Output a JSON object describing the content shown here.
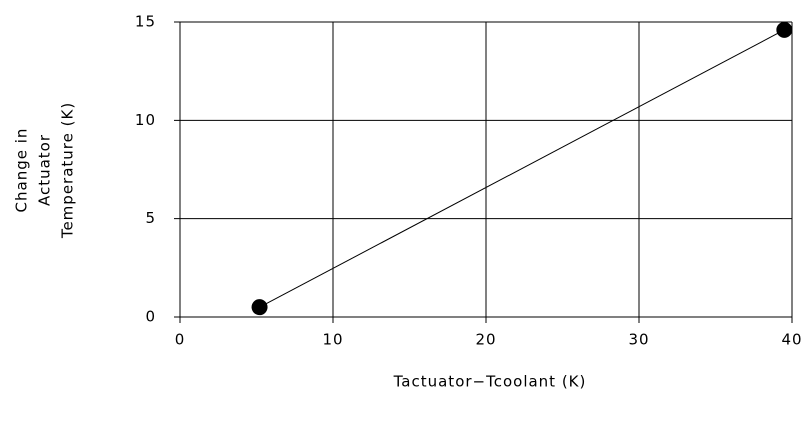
{
  "chart_data": {
    "type": "line",
    "xlabel": "Tactuator−Tcoolant  (K)",
    "ylabel": [
      "Change in",
      "Actuator",
      "Temperature  (K)"
    ],
    "x": [
      5.2,
      39.5
    ],
    "series": [
      {
        "color": "#000000",
        "values": [
          0.5,
          14.6
        ]
      }
    ],
    "xlim": [
      0,
      40
    ],
    "xticks": [
      0,
      10,
      20,
      30,
      40
    ],
    "ylim": [
      0,
      15
    ],
    "yticks": [
      0,
      5,
      10,
      15
    ],
    "grid": true,
    "markers": true
  }
}
